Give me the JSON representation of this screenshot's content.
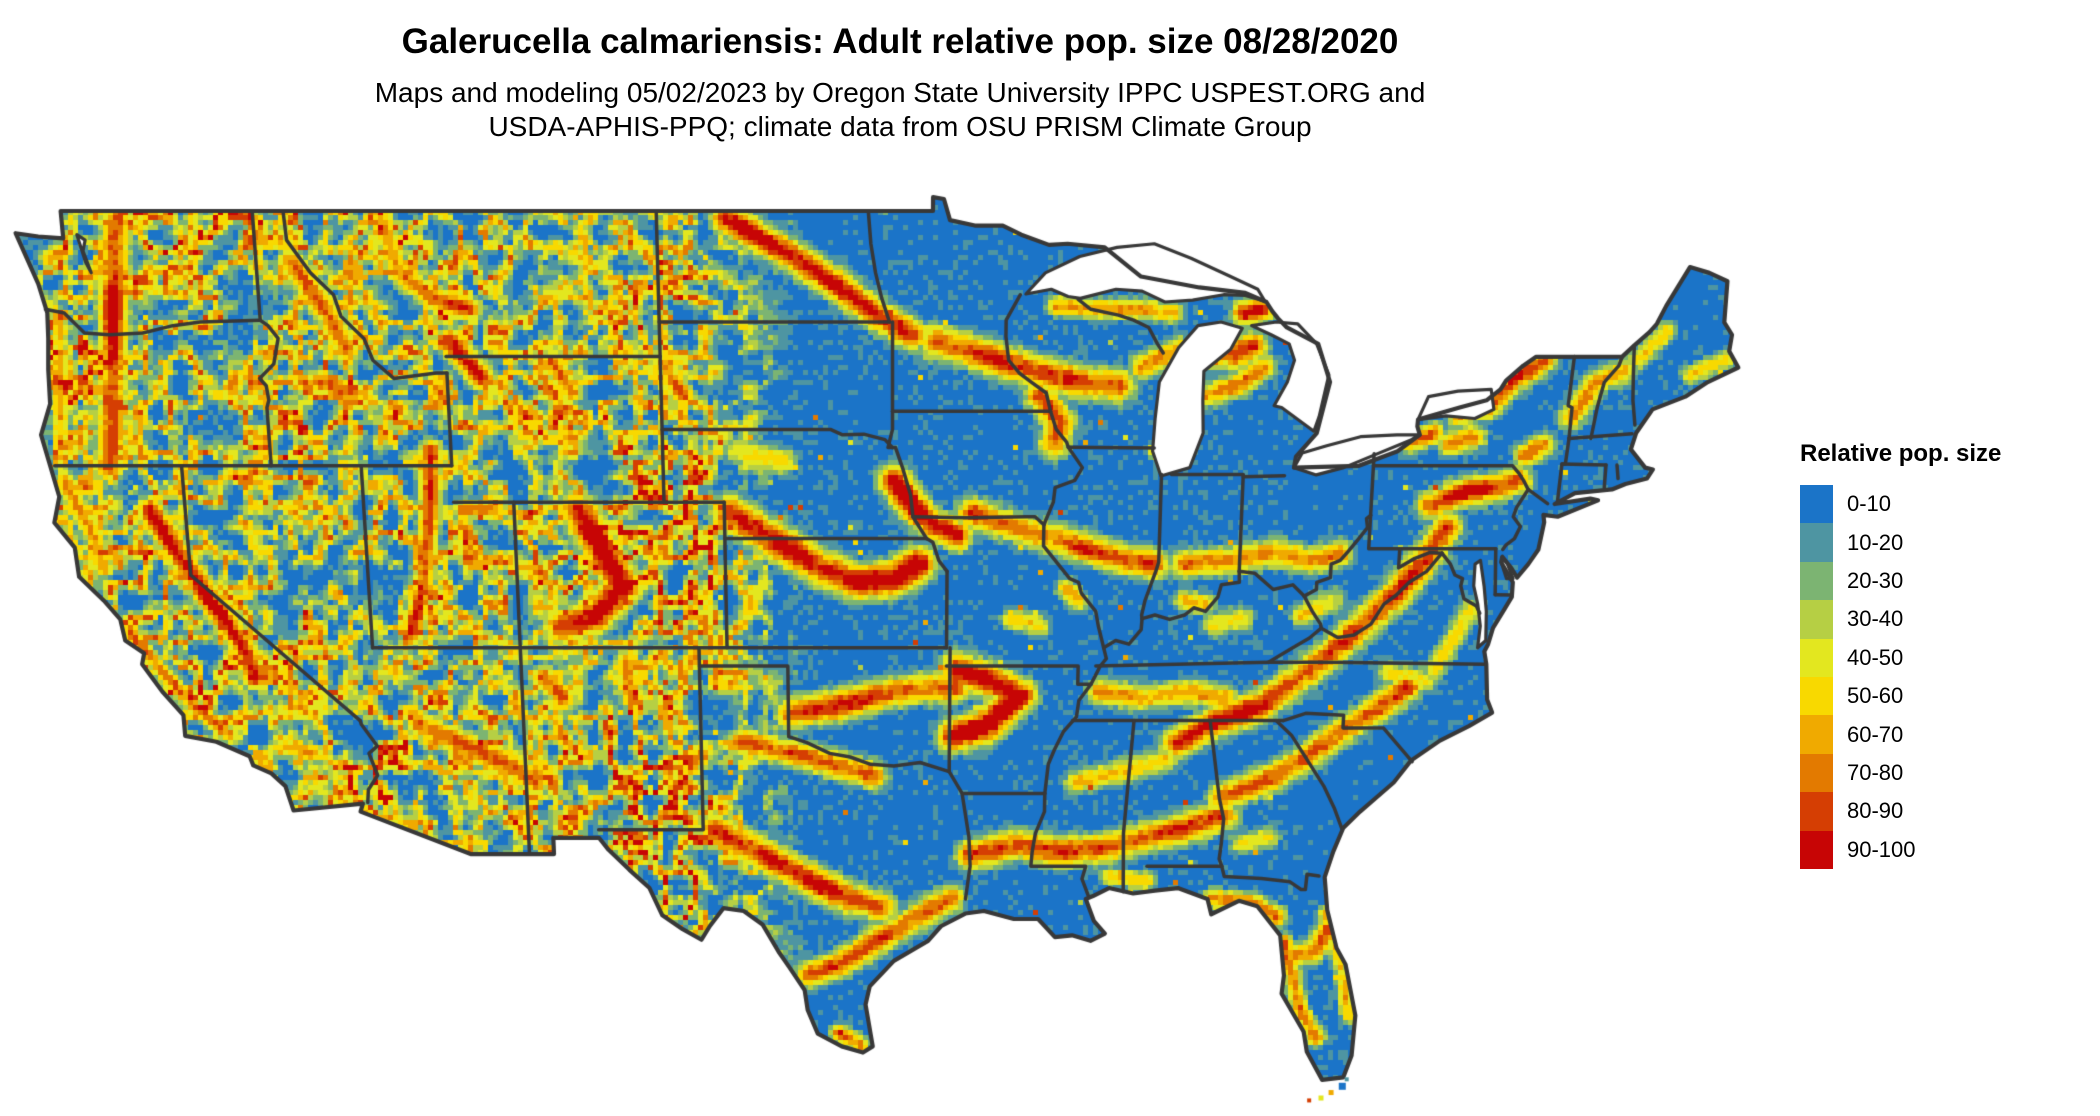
{
  "header": {
    "title": "Galerucella calmariensis: Adult relative pop. size 08/28/2020",
    "subtitle_line1": "Maps and modeling 05/02/2023 by Oregon State University IPPC USPEST.ORG and",
    "subtitle_line2": "USDA-APHIS-PPQ; climate data from OSU PRISM Climate Group"
  },
  "legend": {
    "title": "Relative pop. size",
    "bins": [
      {
        "label": "0-10",
        "color": "#1B74C8"
      },
      {
        "label": "10-20",
        "color": "#4E95A2"
      },
      {
        "label": "20-30",
        "color": "#7CB472"
      },
      {
        "label": "30-40",
        "color": "#B6CF44"
      },
      {
        "label": "40-50",
        "color": "#E3E71F"
      },
      {
        "label": "50-60",
        "color": "#F8D900"
      },
      {
        "label": "60-70",
        "color": "#F0AA00"
      },
      {
        "label": "70-80",
        "color": "#E37A00"
      },
      {
        "label": "80-90",
        "color": "#D53E03"
      },
      {
        "label": "90-100",
        "color": "#C70505"
      }
    ]
  },
  "chart_data": {
    "type": "heatmap",
    "title": "Galerucella calmariensis: Adult relative pop. size 08/28/2020",
    "subtitle": "Maps and modeling 05/02/2023 by Oregon State University IPPC USPEST.ORG and USDA-APHIS-PPQ; climate data from OSU PRISM Climate Group",
    "region": "Continental United States with state boundaries",
    "variable": "Adult relative population size (relative scale 0-100)",
    "date_shown": "08/28/2020",
    "legend_title": "Relative pop. size",
    "legend_position": "right",
    "bins": [
      {
        "range": [
          0,
          10
        ],
        "label": "0-10",
        "color": "#1B74C8"
      },
      {
        "range": [
          10,
          20
        ],
        "label": "10-20",
        "color": "#4E95A2"
      },
      {
        "range": [
          20,
          30
        ],
        "label": "20-30",
        "color": "#7CB472"
      },
      {
        "range": [
          30,
          40
        ],
        "label": "30-40",
        "color": "#B6CF44"
      },
      {
        "range": [
          40,
          50
        ],
        "label": "40-50",
        "color": "#E3E71F"
      },
      {
        "range": [
          50,
          60
        ],
        "label": "50-60",
        "color": "#F8D900"
      },
      {
        "range": [
          60,
          70
        ],
        "label": "60-70",
        "color": "#F0AA00"
      },
      {
        "range": [
          70,
          80
        ],
        "label": "70-80",
        "color": "#E37A00"
      },
      {
        "range": [
          80,
          90
        ],
        "label": "80-90",
        "color": "#D53E03"
      },
      {
        "range": [
          90,
          100
        ],
        "label": "90-100",
        "color": "#C70505"
      }
    ],
    "dominant_class": "0-10 (blue) covers the majority of the map",
    "high_value_areas": [
      "Cascade Range and Sierra Nevada",
      "Intermountain West / Rocky Mountain ridges (speckled yellow-orange)",
      "northern North Dakota into Minnesota and Wisconsin",
      "central Nebraska-Kansas belt and Missouri River valley",
      "Ozarks and Oklahoma belt",
      "central Texas and Gulf Coast belts",
      "Louisiana-Mississippi-Alabama belt",
      "Appalachians from Georgia through Pennsylvania and upstate New York",
      "Florida peninsula margins",
      "Great Lakes shorelines"
    ]
  }
}
